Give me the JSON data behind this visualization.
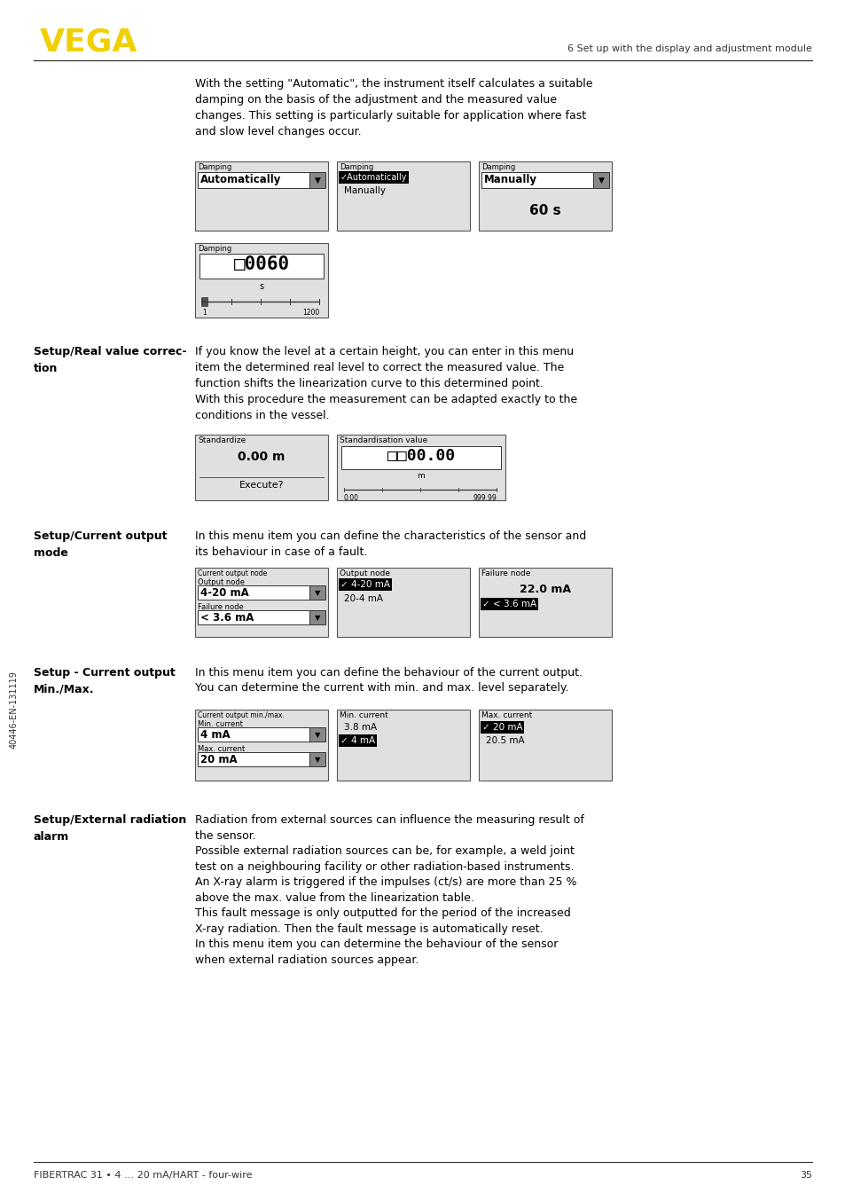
{
  "page_bg": "#ffffff",
  "logo_color": "#f0d000",
  "header_right_text": "6 Set up with the display and adjustment module",
  "footer_left_text": "FIBERTRAC 31 • 4 … 20 mA/HART - four-wire",
  "footer_right_text": "35",
  "sidebar_text": "40446-EN-131119",
  "para1": "With the setting \"Automatic\", the instrument itself calculates a suitable\ndamping on the basis of the adjustment and the measured value\nchanges. This setting is particularly suitable for application where fast\nand slow level changes occur.",
  "para2a": "If you know the level at a certain height, you can enter in this menu\nitem the determined real level to correct the measured value. The\nfunction shifts the linearization curve to this determined point.",
  "para2b": "With this procedure the measurement can be adapted exactly to the\nconditions in the vessel.",
  "para3": "In this menu item you can define the characteristics of the sensor and\nits behaviour in case of a fault.",
  "para4a": "In this menu item you can define the behaviour of the current output.",
  "para4b": "You can determine the current with min. and max. level separately.",
  "para5a": "Radiation from external sources can influence the measuring result of\nthe sensor.",
  "para5b": "Possible external radiation sources can be, for example, a weld joint\ntest on a neighbouring facility or other radiation-based instruments.",
  "para5c": "An X-ray alarm is triggered if the impulses (ct/s) are more than 25 %\nabove the max. value from the linearization table.",
  "para5d": "This fault message is only outputted for the period of the increased\nX-ray radiation. Then the fault message is automatically reset.",
  "para5e": "In this menu item you can determine the behaviour of the sensor\nwhen external radiation sources appear.",
  "box_bg": "#e0e0e0",
  "box_border": "#555555"
}
